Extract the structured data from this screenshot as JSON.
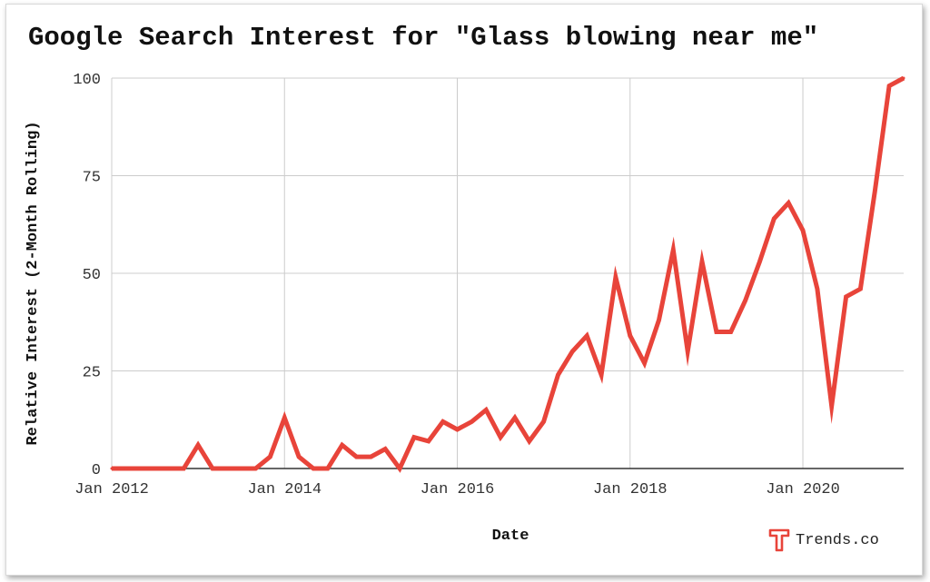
{
  "chart_data": {
    "type": "line",
    "title": "Google Search Interest for \"Glass blowing near me\"",
    "xlabel": "Date",
    "ylabel": "Relative Interest (2-Month Rolling)",
    "ylim": [
      0,
      100
    ],
    "yticks": [
      0,
      25,
      50,
      75,
      100
    ],
    "xlim": [
      "2012-01",
      "2021-03"
    ],
    "xticks": [
      {
        "date": "2012-01",
        "label": "Jan 2012"
      },
      {
        "date": "2014-01",
        "label": "Jan 2014"
      },
      {
        "date": "2016-01",
        "label": "Jan 2016"
      },
      {
        "date": "2018-01",
        "label": "Jan 2018"
      },
      {
        "date": "2020-01",
        "label": "Jan 2020"
      }
    ],
    "grid": true,
    "color": "#e8443a",
    "series": [
      {
        "x": [
          "2012-01",
          "2012-03",
          "2012-05",
          "2012-07",
          "2012-09",
          "2012-11",
          "2013-01",
          "2013-03",
          "2013-05",
          "2013-07",
          "2013-09",
          "2013-11",
          "2014-01",
          "2014-03",
          "2014-05",
          "2014-07",
          "2014-09",
          "2014-11",
          "2015-01",
          "2015-03",
          "2015-05",
          "2015-07",
          "2015-09",
          "2015-11",
          "2016-01",
          "2016-03",
          "2016-05",
          "2016-07",
          "2016-09",
          "2016-11",
          "2017-01",
          "2017-03",
          "2017-05",
          "2017-07",
          "2017-09",
          "2017-11",
          "2018-01",
          "2018-03",
          "2018-05",
          "2018-07",
          "2018-09",
          "2018-11",
          "2019-01",
          "2019-03",
          "2019-05",
          "2019-07",
          "2019-09",
          "2019-11",
          "2020-01",
          "2020-03",
          "2020-05",
          "2020-07",
          "2020-09",
          "2020-11",
          "2021-01",
          "2021-03"
        ],
        "y": [
          0,
          0,
          0,
          0,
          0,
          0,
          6,
          0,
          0,
          0,
          0,
          3,
          13,
          3,
          0,
          0,
          6,
          3,
          3,
          5,
          0,
          8,
          7,
          12,
          10,
          12,
          15,
          8,
          13,
          7,
          12,
          24,
          30,
          34,
          24,
          49,
          34,
          27,
          38,
          56,
          30,
          53,
          35,
          35,
          43,
          53,
          64,
          68,
          61,
          46,
          16,
          44,
          46,
          71,
          98,
          100
        ]
      }
    ],
    "brand": "Trends.co",
    "brand_icon": "trends-logo-icon"
  }
}
